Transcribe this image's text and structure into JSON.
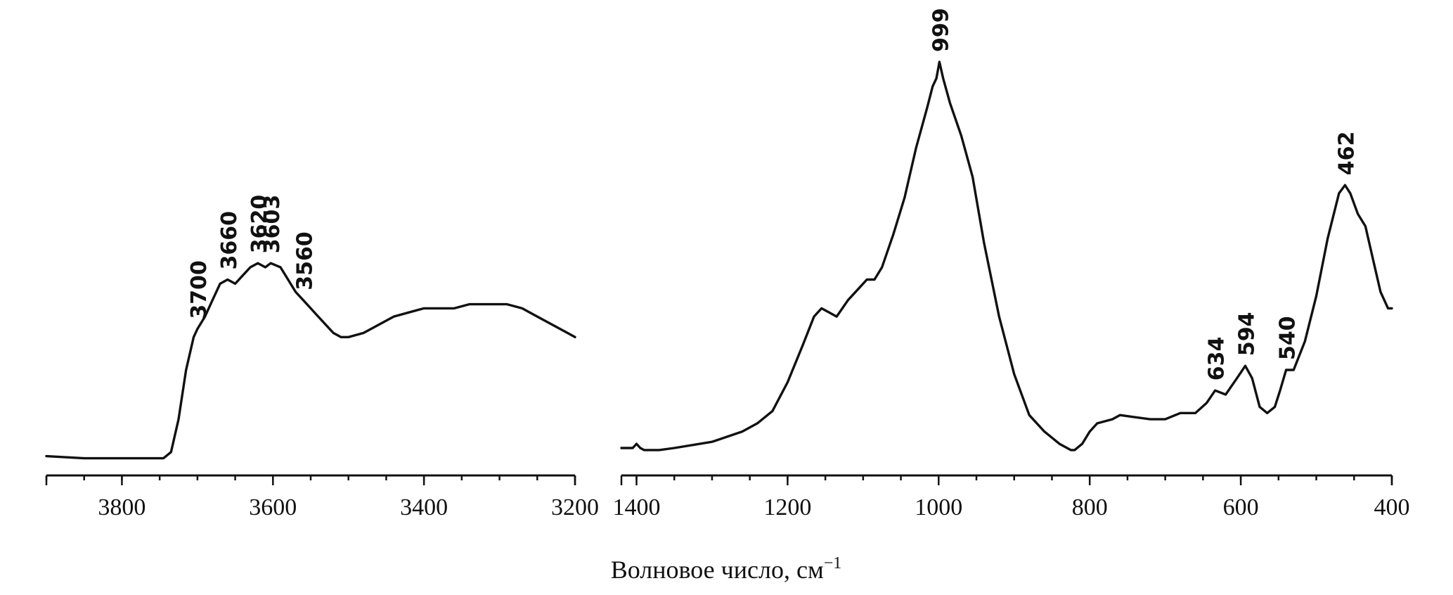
{
  "chart_data": [
    {
      "type": "line",
      "xlim": [
        3900,
        3200
      ],
      "ylim": [
        0,
        1
      ],
      "xticks": [
        3800,
        3600,
        3400,
        3200
      ],
      "tick_labels": [
        "3800",
        "3600",
        "3400",
        "3200"
      ],
      "series": [
        {
          "x": [
            3900,
            3850,
            3800,
            3760,
            3745,
            3735,
            3725,
            3715,
            3705,
            3700,
            3690,
            3680,
            3670,
            3660,
            3650,
            3640,
            3630,
            3620,
            3610,
            3603,
            3590,
            3580,
            3570,
            3560,
            3550,
            3540,
            3530,
            3520,
            3510,
            3500,
            3480,
            3460,
            3440,
            3420,
            3400,
            3380,
            3360,
            3340,
            3320,
            3300,
            3290,
            3270,
            3250,
            3230,
            3210,
            3200
          ],
          "y": [
            0.04,
            0.035,
            0.035,
            0.035,
            0.035,
            0.05,
            0.13,
            0.25,
            0.33,
            0.35,
            0.38,
            0.42,
            0.46,
            0.47,
            0.46,
            0.48,
            0.5,
            0.51,
            0.5,
            0.51,
            0.5,
            0.47,
            0.44,
            0.42,
            0.4,
            0.38,
            0.36,
            0.34,
            0.33,
            0.33,
            0.34,
            0.36,
            0.38,
            0.39,
            0.4,
            0.4,
            0.4,
            0.41,
            0.41,
            0.41,
            0.41,
            0.4,
            0.38,
            0.36,
            0.34,
            0.33
          ]
        }
      ],
      "annotations": [
        {
          "label": "3700",
          "x": 3700,
          "y": 0.35
        },
        {
          "label": "3660",
          "x": 3660,
          "y": 0.47
        },
        {
          "label": "3620",
          "x": 3620,
          "y": 0.51
        },
        {
          "label": "3603",
          "x": 3603,
          "y": 0.51
        },
        {
          "label": "3560",
          "x": 3560,
          "y": 0.42
        }
      ]
    },
    {
      "type": "line",
      "xlim": [
        1420,
        400
      ],
      "ylim": [
        0,
        1
      ],
      "xticks": [
        1400,
        1200,
        1000,
        800,
        600,
        400
      ],
      "tick_labels": [
        "1400",
        "1200",
        "1000",
        "800",
        "600",
        "400"
      ],
      "series": [
        {
          "x": [
            1420,
            1405,
            1400,
            1395,
            1390,
            1370,
            1350,
            1300,
            1260,
            1240,
            1220,
            1200,
            1180,
            1165,
            1155,
            1145,
            1135,
            1120,
            1105,
            1095,
            1085,
            1075,
            1060,
            1045,
            1030,
            1015,
            1008,
            1003,
            999,
            994,
            985,
            970,
            955,
            940,
            920,
            900,
            880,
            860,
            840,
            825,
            820,
            810,
            800,
            790,
            780,
            770,
            760,
            740,
            720,
            700,
            680,
            660,
            645,
            634,
            620,
            605,
            594,
            585,
            575,
            565,
            555,
            548,
            540,
            530,
            515,
            500,
            485,
            470,
            462,
            455,
            445,
            435,
            425,
            415,
            405,
            400
          ],
          "y": [
            0.06,
            0.06,
            0.07,
            0.06,
            0.055,
            0.055,
            0.06,
            0.075,
            0.1,
            0.12,
            0.15,
            0.22,
            0.31,
            0.38,
            0.4,
            0.39,
            0.38,
            0.42,
            0.45,
            0.47,
            0.47,
            0.5,
            0.58,
            0.67,
            0.79,
            0.89,
            0.94,
            0.96,
            1.0,
            0.96,
            0.9,
            0.82,
            0.72,
            0.56,
            0.38,
            0.24,
            0.14,
            0.1,
            0.07,
            0.055,
            0.055,
            0.07,
            0.1,
            0.12,
            0.125,
            0.13,
            0.14,
            0.135,
            0.13,
            0.13,
            0.145,
            0.145,
            0.17,
            0.2,
            0.19,
            0.23,
            0.26,
            0.23,
            0.16,
            0.145,
            0.16,
            0.2,
            0.25,
            0.25,
            0.32,
            0.43,
            0.57,
            0.68,
            0.7,
            0.68,
            0.63,
            0.6,
            0.52,
            0.44,
            0.4,
            0.4
          ]
        }
      ],
      "annotations": [
        {
          "label": "999",
          "x": 999,
          "y": 1.0
        },
        {
          "label": "634",
          "x": 634,
          "y": 0.2
        },
        {
          "label": "594",
          "x": 594,
          "y": 0.26
        },
        {
          "label": "540",
          "x": 540,
          "y": 0.25
        },
        {
          "label": "462",
          "x": 462,
          "y": 0.7
        }
      ]
    }
  ],
  "xlabel": "Волновое число, см",
  "xlabel_sup": "−1"
}
